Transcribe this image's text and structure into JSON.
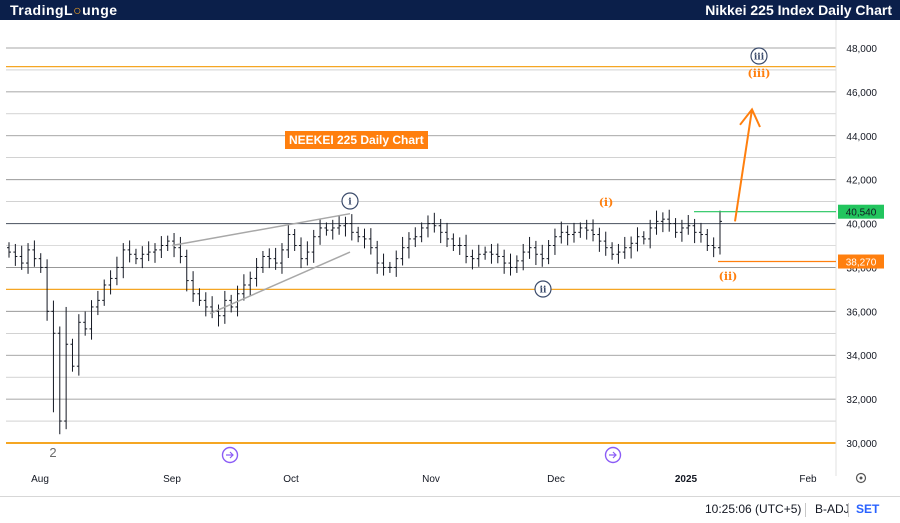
{
  "header": {
    "brand_part1": "TradingL",
    "brand_part2": "unge",
    "title": "Nikkei 225 Index Daily Chart"
  },
  "footer": {
    "time": "10:25:06 (UTC+5)",
    "adj": "B-ADJ",
    "session": "SET"
  },
  "colors": {
    "accent": "#ff7f0e",
    "wave_gray": "#3b4b6b",
    "green": "#22c55e",
    "brand": "#0b1f4a"
  },
  "chart_data": {
    "type": "ohlc",
    "annotation_title": "NEEKEI 225 Daily Chart",
    "x_tick_labels": [
      "Aug",
      "Sep",
      "Oct",
      "Nov",
      "Dec",
      "2025",
      "Feb"
    ],
    "y_tick_labels": [
      "30,000",
      "32,000",
      "34,000",
      "36,000",
      "38,000",
      "40,000",
      "42,000",
      "44,000",
      "46,000",
      "48,000"
    ],
    "ylim": [
      29900,
      49200
    ],
    "price_labels": [
      {
        "value": 40540,
        "text": "40,540",
        "color": "#22c55e"
      },
      {
        "value": 38270,
        "text": "38,270",
        "color": "#ff7f0e"
      }
    ],
    "horizontal_levels": [
      {
        "value": 47150,
        "color": "#f5a623"
      },
      {
        "value": 40000,
        "color": "#5d6470"
      },
      {
        "value": 37000,
        "color": "#f5a623"
      },
      {
        "value": 30000,
        "color": "#f5a623"
      }
    ],
    "wave_labels": [
      {
        "text": "2",
        "style": "plain"
      },
      {
        "text": "i",
        "style": "circle-gray"
      },
      {
        "text": "ii",
        "style": "circle-gray"
      },
      {
        "text": "iii",
        "style": "circle-gray"
      },
      {
        "text": "(i)",
        "style": "orange"
      },
      {
        "text": "(ii)",
        "style": "orange"
      },
      {
        "text": "(iii)",
        "style": "orange"
      }
    ],
    "series": [
      {
        "name": "",
        "close": [
          38700,
          38500,
          38200,
          38800,
          38400,
          38000,
          36000,
          35000,
          31000,
          34500,
          33500,
          35500,
          35200,
          36200,
          36500,
          37200,
          37500,
          38000,
          38800,
          38600,
          38400,
          38600,
          38700,
          38800,
          39000,
          39200,
          38900,
          38500,
          37400,
          36800,
          36500,
          36200,
          36000,
          35800,
          36500,
          36200,
          36800,
          37200,
          37500,
          38000,
          38500,
          38400,
          38200,
          38800,
          39500,
          39000,
          38400,
          38700,
          39400,
          39800,
          39700,
          39800,
          39900,
          40000,
          39600,
          39400,
          39300,
          38900,
          38200,
          38000,
          38000,
          38400,
          38900,
          39300,
          39400,
          39800,
          40000,
          39900,
          39600,
          39300,
          39000,
          39000,
          38500,
          38400,
          38600,
          38700,
          38600,
          38500,
          38200,
          38000,
          38300,
          38700,
          38900,
          38600,
          38400,
          39000,
          39400,
          39600,
          39500,
          39600,
          39800,
          39700,
          39500,
          39200,
          38900,
          38600,
          38700,
          38900,
          39100,
          39400,
          39300,
          39800,
          40100,
          40200,
          40000,
          39600,
          39800,
          39900,
          39600,
          39500,
          39000,
          38900,
          40100
        ]
      }
    ]
  }
}
